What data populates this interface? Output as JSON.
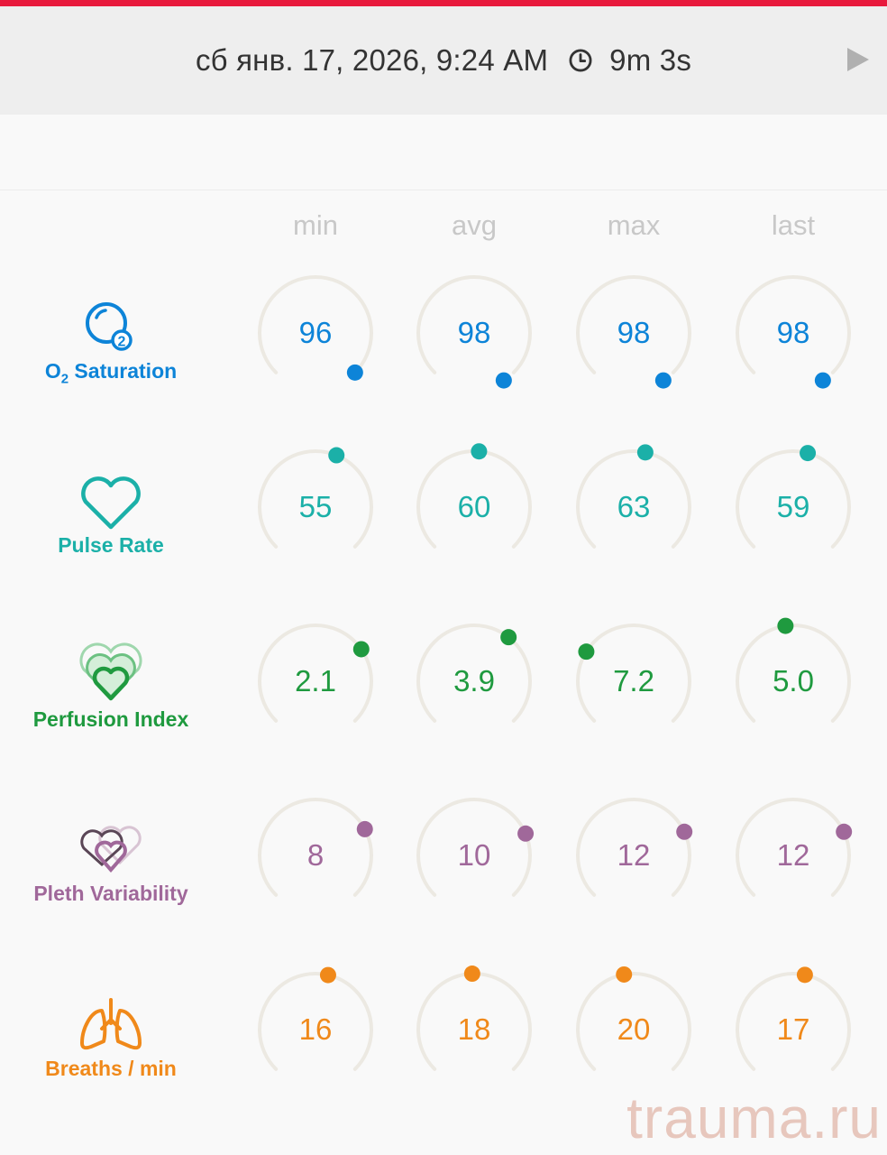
{
  "header": {
    "date_time": "сб янв. 17, 2026, 9:24 AM",
    "duration": "9m 3s",
    "accent_color": "#e8193c"
  },
  "columns": [
    "min",
    "avg",
    "max",
    "last"
  ],
  "metrics": [
    {
      "key": "o2",
      "label_main": "O",
      "label_sub": "2",
      "label_rest": " Saturation",
      "icon": "o2-bubble-icon",
      "color": "#0d84d8",
      "values": [
        "96",
        "98",
        "98",
        "98"
      ],
      "dot_angles": [
        135,
        122,
        122,
        122
      ]
    },
    {
      "key": "pr",
      "label": "Pulse Rate",
      "icon": "heart-outline-icon",
      "color": "#1bb0a8",
      "values": [
        "55",
        "60",
        "63",
        "59"
      ],
      "dot_angles": [
        -112,
        -95,
        -102,
        -105
      ]
    },
    {
      "key": "pi",
      "label": "Perfusion Index",
      "icon": "layered-hearts-icon",
      "color": "#1f9a3f",
      "values": [
        "2.1",
        "3.9",
        "7.2",
        "5.0"
      ],
      "dot_angles": [
        -145,
        -128,
        -32,
        -82
      ]
    },
    {
      "key": "pvi",
      "label": "Pleth Variability",
      "icon": "pleth-hearts-icon",
      "color": "#a0689a",
      "values": [
        "8",
        "10",
        "12",
        "12"
      ],
      "dot_angles": [
        -152,
        -157,
        -155,
        -155
      ]
    },
    {
      "key": "rr",
      "label": "Breaths / min",
      "icon": "lungs-icon",
      "color": "#f0891a",
      "values": [
        "16",
        "18",
        "20",
        "17"
      ],
      "dot_angles": [
        -103,
        -88,
        -80,
        -102
      ]
    }
  ],
  "watermark": "trauma.ru"
}
